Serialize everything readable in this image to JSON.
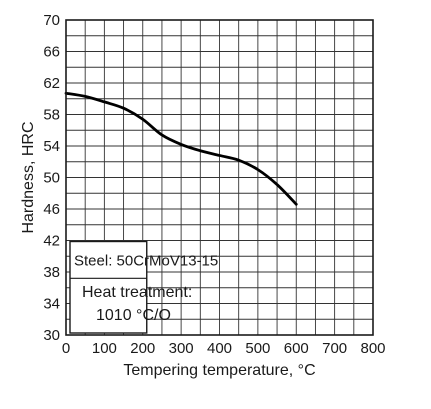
{
  "chart_data": {
    "type": "line",
    "title": "",
    "xlabel": "Tempering temperature, °C",
    "ylabel": "Hardness, HRC",
    "xlim": [
      0,
      800
    ],
    "ylim": [
      30,
      70
    ],
    "x_ticks": [
      "0",
      "100",
      "200",
      "300",
      "400",
      "500",
      "600",
      "700",
      "800"
    ],
    "y_ticks": [
      "30",
      "34",
      "38",
      "42",
      "46",
      "50",
      "54",
      "58",
      "62",
      "66",
      "70"
    ],
    "grid": true,
    "minor_grid_step_x": 50,
    "minor_grid_step_y": 2,
    "series": [
      {
        "x": [
          0,
          50,
          100,
          150,
          200,
          250,
          300,
          350,
          400,
          450,
          500,
          550,
          600
        ],
        "y": [
          60.7,
          60.3,
          59.6,
          58.8,
          57.4,
          55.4,
          54.2,
          53.4,
          52.8,
          52.2,
          51.0,
          49.1,
          46.6
        ]
      }
    ],
    "annotation": {
      "steel": "Steel: 50CrMoV13-15",
      "heat_treatment_label": "Heat treatment:",
      "heat_treatment_value": "1010 °C/O"
    }
  }
}
